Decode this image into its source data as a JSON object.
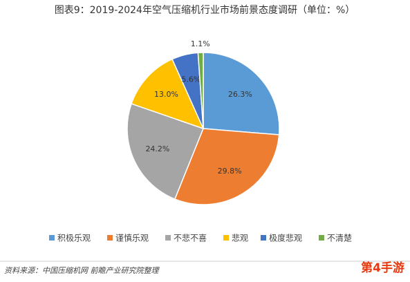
{
  "chart_data": {
    "type": "pie",
    "title": "图表9：2019-2024年空气压缩机行业市场前景态度调研（单位：%）",
    "categories": [
      "积极乐观",
      "谨慎乐观",
      "不悲不喜",
      "悲观",
      "极度悲观",
      "不清楚"
    ],
    "values": [
      26.3,
      29.8,
      24.2,
      13.0,
      5.6,
      1.1
    ],
    "value_labels": [
      "26.3%",
      "29.8%",
      "24.2%",
      "13.0%",
      "5.6%",
      "1.1%"
    ],
    "colors": [
      "#5b9bd5",
      "#ed7d31",
      "#a5a5a5",
      "#ffc000",
      "#4472c4",
      "#70ad47"
    ],
    "legend": "bottom",
    "source": "资料来源：中国压缩机网 前瞻产业研究院整理",
    "watermark": "第4手游"
  }
}
